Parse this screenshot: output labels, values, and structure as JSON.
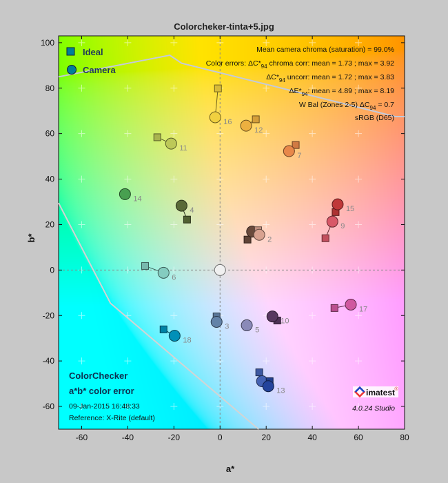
{
  "title": "Colorcheker-tinta+5.jpg",
  "legend": {
    "ideal": "Ideal",
    "camera": "Camera",
    "color": "#00809a"
  },
  "stats": [
    {
      "pre": "Mean camera chroma (saturation) = 99.0%",
      "sub": "",
      "post": ""
    },
    {
      "pre": "Color errors: ΔC*",
      "sub": "94",
      "post": " chroma corr:  mean = 1.73 ;  max = 3.92"
    },
    {
      "pre": "ΔC*",
      "sub": "94",
      "post": " uncorr:  mean = 1.72 ;  max = 3.83"
    },
    {
      "pre": "ΔE*",
      "sub": "94",
      "post": ":  mean = 4.89 ;  max = 8.19"
    },
    {
      "pre": "W Bal (Zones 2-5) ΔC",
      "sub": "94",
      "post": " = 0.7"
    },
    {
      "pre": "sRGB (D65)",
      "sub": "",
      "post": ""
    }
  ],
  "info": {
    "chart_name": "ColorChecker",
    "plot_name": "a*b* color error",
    "datetime": "09-Jan-2015 16:48:33",
    "reference": "Reference: X-Rite (default)",
    "logo": "imatest",
    "version": "4.0.24  Studio"
  },
  "chart_data": {
    "type": "scatter",
    "title": "Colorcheker-tinta+5.jpg",
    "xlabel": "a*",
    "ylabel": "b*",
    "xlim": [
      -70,
      80
    ],
    "ylim": [
      -70,
      103
    ],
    "xticks": [
      -60,
      -40,
      -20,
      0,
      20,
      40,
      60,
      80
    ],
    "yticks": [
      -60,
      -40,
      -20,
      0,
      20,
      40,
      60,
      80,
      100
    ],
    "grid": "crosses",
    "legend_placement": "top-left",
    "gamut_boundary": {
      "name": "sRGB (D65)",
      "upper": [
        [
          -70,
          85
        ],
        [
          -21.8,
          94.5
        ],
        [
          -16.7,
          91
        ],
        [
          76,
          67.5
        ],
        [
          80,
          67.5
        ]
      ],
      "lower": [
        [
          -70,
          29.5
        ],
        [
          -47.5,
          -14.6
        ],
        [
          16.7,
          -70
        ]
      ]
    },
    "patches": [
      {
        "label": "",
        "color": "#6a4a3c",
        "ideal": [
          11.9,
          13.4
        ],
        "camera": [
          13.9,
          16.9
        ]
      },
      {
        "label": "2",
        "color": "#d8a290",
        "ideal": [
          16.5,
          17.5
        ],
        "camera": [
          17.0,
          15.5
        ]
      },
      {
        "label": "3",
        "color": "#6383a8",
        "ideal": [
          -1.5,
          -20.4
        ],
        "camera": [
          -1.5,
          -22.8
        ]
      },
      {
        "label": "4",
        "color": "#5a6a38",
        "ideal": [
          -14.3,
          22.2
        ],
        "camera": [
          -16.7,
          28.3
        ]
      },
      {
        "label": "5",
        "color": "#8a8ab8",
        "ideal": [
          11.6,
          -24.3
        ],
        "camera": [
          11.6,
          -24.3
        ]
      },
      {
        "label": "6",
        "color": "#84ccc0",
        "ideal": [
          -32.5,
          1.8
        ],
        "camera": [
          -24.5,
          -1.2
        ]
      },
      {
        "label": "7",
        "color": "#e8884a",
        "ideal": [
          32.8,
          55.0
        ],
        "camera": [
          29.9,
          52.3
        ]
      },
      {
        "label": "8",
        "color": "#4462b4",
        "ideal": [
          17.0,
          -45.0
        ],
        "camera": [
          18.2,
          -48.9
        ]
      },
      {
        "label": "9",
        "color": "#d85868",
        "ideal": [
          45.7,
          14.0
        ],
        "camera": [
          48.7,
          21.3
        ]
      },
      {
        "label": "10",
        "color": "#583860",
        "ideal": [
          24.8,
          -22.2
        ],
        "camera": [
          22.7,
          -20.4
        ]
      },
      {
        "label": "11",
        "color": "#bcc858",
        "ideal": [
          -27.2,
          58.4
        ],
        "camera": [
          -21.2,
          55.6
        ]
      },
      {
        "label": "12",
        "color": "#ecb040",
        "ideal": [
          15.5,
          66.3
        ],
        "camera": [
          11.3,
          63.5
        ]
      },
      {
        "label": "13",
        "color": "#24449c",
        "ideal": [
          21.5,
          -48.9
        ],
        "camera": [
          20.9,
          -51.1
        ]
      },
      {
        "label": "14",
        "color": "#48a050",
        "ideal": [
          -41.2,
          33.4
        ],
        "camera": [
          -41.2,
          33.4
        ]
      },
      {
        "label": "15",
        "color": "#c03838",
        "ideal": [
          50.1,
          25.5
        ],
        "camera": [
          51.0,
          28.9
        ]
      },
      {
        "label": "16",
        "color": "#f0d040",
        "ideal": [
          -0.9,
          79.9
        ],
        "camera": [
          -2.1,
          67.2
        ]
      },
      {
        "label": "17",
        "color": "#d058a0",
        "ideal": [
          49.6,
          -16.7
        ],
        "camera": [
          56.7,
          -15.2
        ]
      },
      {
        "label": "18",
        "color": "#0090b8",
        "ideal": [
          -24.5,
          -26.1
        ],
        "camera": [
          -19.7,
          -28.9
        ]
      },
      {
        "label": "",
        "color": "#f0f0f0",
        "ideal": [
          0,
          0
        ],
        "camera": [
          0,
          0
        ]
      }
    ]
  }
}
